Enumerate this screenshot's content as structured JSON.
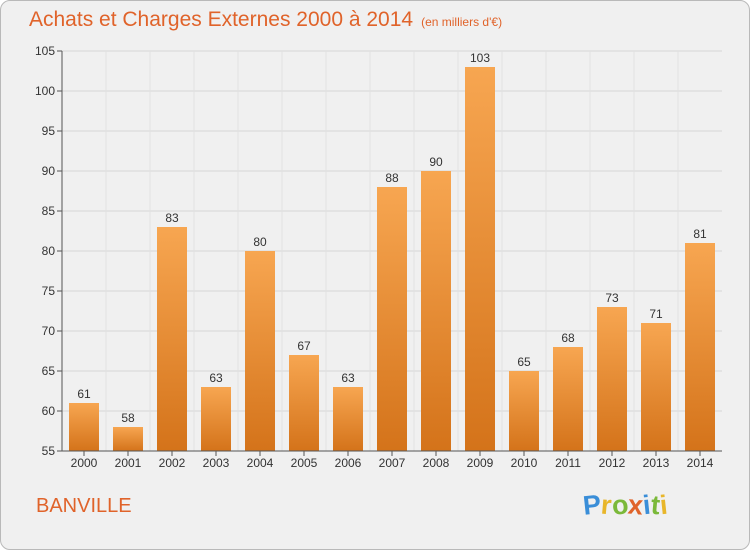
{
  "header": {
    "title": "Achats et Charges Externes 2000 à 2014",
    "unit": "(en milliers d'€)"
  },
  "footer": {
    "place": "BANVILLE",
    "logo_letters": [
      {
        "char": "P",
        "color": "#3a8ed8"
      },
      {
        "char": "r",
        "color": "#e8b62a"
      },
      {
        "char": "o",
        "color": "#7bb93a"
      },
      {
        "char": "x",
        "color": "#e0632a"
      },
      {
        "char": "i",
        "color": "#3a8ed8"
      },
      {
        "char": "t",
        "color": "#7bb93a"
      },
      {
        "char": "i",
        "color": "#e8b62a"
      }
    ]
  },
  "chart_data": {
    "type": "bar",
    "title": "Achats et Charges Externes 2000 à 2014",
    "categories": [
      "2000",
      "2001",
      "2002",
      "2003",
      "2004",
      "2005",
      "2006",
      "2007",
      "2008",
      "2009",
      "2010",
      "2011",
      "2012",
      "2013",
      "2014"
    ],
    "values": [
      61,
      58,
      83,
      63,
      80,
      67,
      63,
      88,
      90,
      103,
      65,
      68,
      73,
      71,
      81
    ],
    "ylim": [
      55,
      105
    ],
    "yticks": [
      55,
      60,
      65,
      70,
      75,
      80,
      85,
      90,
      95,
      100,
      105
    ],
    "grid": true,
    "bar_color_top": "#f7a651",
    "bar_color_bottom": "#d4731a"
  }
}
